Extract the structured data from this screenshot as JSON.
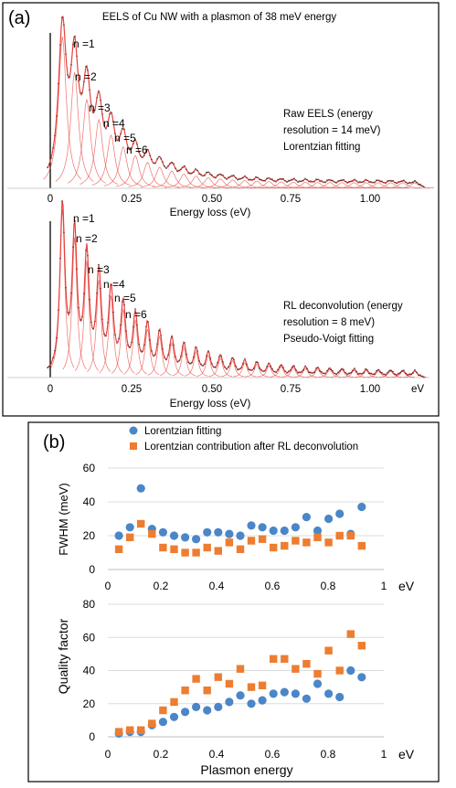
{
  "panel_a": {
    "label": "(a)",
    "title": "EELS of  Cu NW with a plasmon of 38 meV energy",
    "top_plot": {
      "xlabel": "Energy loss (eV)",
      "peak_labels": [
        "n =1",
        "n =2",
        "n =3",
        "n =4",
        "n =5",
        "n =6"
      ],
      "annotation_lines": [
        "Raw EELS (energy",
        "resolution = 14 meV)",
        "Lorentzian fitting"
      ]
    },
    "bottom_plot": {
      "xlabel": "Energy loss (eV)",
      "x_unit": "eV",
      "peak_labels": [
        "n =1",
        "n =2",
        "n =3",
        "n =4",
        "n =5",
        "n =6"
      ],
      "annotation_lines": [
        "RL deconvolution (energy",
        "resolution = 8 meV)",
        "Pseudo-Voigt fitting"
      ]
    },
    "x_ticks": [
      "0",
      "0.25",
      "0.50",
      "0.75",
      "1.00"
    ]
  },
  "panel_b": {
    "label": "(b)",
    "legend": [
      "Lorentzian fitting",
      "Lorentzian contribution after RL deconvolution"
    ],
    "x_unit": "eV",
    "xlabel": "Plasmon energy",
    "x_ticks": [
      "0",
      "0.2",
      "0.4",
      "0.6",
      "0.8",
      "1"
    ]
  },
  "colors": {
    "series_blue": "#4a86c8",
    "series_orange": "#ed7d31",
    "fit_red": "#e8413c",
    "raw_black": "#222222"
  },
  "chart_data": [
    {
      "type": "line",
      "title": "EELS of  Cu NW with a plasmon of 38 meV energy",
      "xlabel": "Energy loss (eV)",
      "ylabel": "",
      "xlim": [
        -0.05,
        1.2
      ],
      "x_ticks": [
        0,
        0.25,
        0.5,
        0.75,
        1.0
      ],
      "peak_energy_step": 0.038,
      "peak_count": 30,
      "fit": "Lorentzian",
      "energy_resolution_meV": 14,
      "series": [
        {
          "name": "Raw EELS",
          "peak_x": [
            0.038,
            0.076,
            0.114,
            0.152,
            0.19,
            0.228
          ],
          "peak_labels": [
            "n =1",
            "n =2",
            "n =3",
            "n =4",
            "n =5",
            "n =6"
          ]
        }
      ]
    },
    {
      "type": "line",
      "xlabel": "Energy loss (eV)",
      "ylabel": "",
      "xlim": [
        -0.05,
        1.2
      ],
      "x_ticks": [
        0,
        0.25,
        0.5,
        0.75,
        1.0
      ],
      "peak_energy_step": 0.038,
      "peak_count": 30,
      "fit": "Pseudo-Voigt",
      "energy_resolution_meV": 8,
      "series": [
        {
          "name": "RL deconvolution",
          "peak_x": [
            0.038,
            0.076,
            0.114,
            0.152,
            0.19,
            0.228
          ],
          "peak_labels": [
            "n =1",
            "n =2",
            "n =3",
            "n =4",
            "n =5",
            "n =6"
          ]
        }
      ]
    },
    {
      "type": "scatter",
      "title": "",
      "xlabel": "",
      "ylabel": "FWHM (meV)",
      "xlim": [
        0,
        1
      ],
      "ylim": [
        0,
        60
      ],
      "y_ticks": [
        0,
        20,
        40,
        60
      ],
      "x": [
        0.04,
        0.08,
        0.12,
        0.16,
        0.2,
        0.24,
        0.28,
        0.32,
        0.36,
        0.4,
        0.44,
        0.48,
        0.52,
        0.56,
        0.6,
        0.64,
        0.68,
        0.72,
        0.76,
        0.8,
        0.84,
        0.88,
        0.92
      ],
      "series": [
        {
          "name": "Lorentzian fitting",
          "marker": "circle",
          "values": [
            20,
            25,
            48,
            24,
            22,
            20,
            19,
            18,
            22,
            22,
            21,
            20,
            26,
            25,
            23,
            23,
            25,
            31,
            23,
            30,
            33,
            21,
            37
          ]
        },
        {
          "name": "Lorentzian contribution after RL deconvolution",
          "marker": "square",
          "values": [
            12,
            19,
            27,
            21,
            13,
            12,
            10,
            10,
            13,
            11,
            16,
            12,
            17,
            18,
            13,
            14,
            17,
            16,
            19,
            16,
            20,
            20,
            14
          ]
        }
      ]
    },
    {
      "type": "scatter",
      "title": "",
      "xlabel": "Plasmon energy",
      "ylabel": "Quality factor",
      "xlim": [
        0,
        1
      ],
      "ylim": [
        0,
        80
      ],
      "y_ticks": [
        0,
        20,
        40,
        60,
        80
      ],
      "x": [
        0.04,
        0.08,
        0.12,
        0.16,
        0.2,
        0.24,
        0.28,
        0.32,
        0.36,
        0.4,
        0.44,
        0.48,
        0.52,
        0.56,
        0.6,
        0.64,
        0.68,
        0.72,
        0.76,
        0.8,
        0.84,
        0.88,
        0.92
      ],
      "series": [
        {
          "name": "Lorentzian fitting",
          "marker": "circle",
          "values": [
            2,
            3,
            3,
            7,
            9,
            12,
            15,
            18,
            16,
            18,
            21,
            25,
            20,
            22,
            26,
            27,
            26,
            23,
            32,
            26,
            24,
            40,
            36
          ]
        },
        {
          "name": "Lorentzian contribution after RL deconvolution",
          "marker": "square",
          "values": [
            3,
            4,
            4,
            8,
            16,
            21,
            28,
            35,
            28,
            36,
            32,
            41,
            30,
            31,
            47,
            47,
            41,
            44,
            38,
            52,
            40,
            62,
            55
          ]
        }
      ]
    }
  ]
}
